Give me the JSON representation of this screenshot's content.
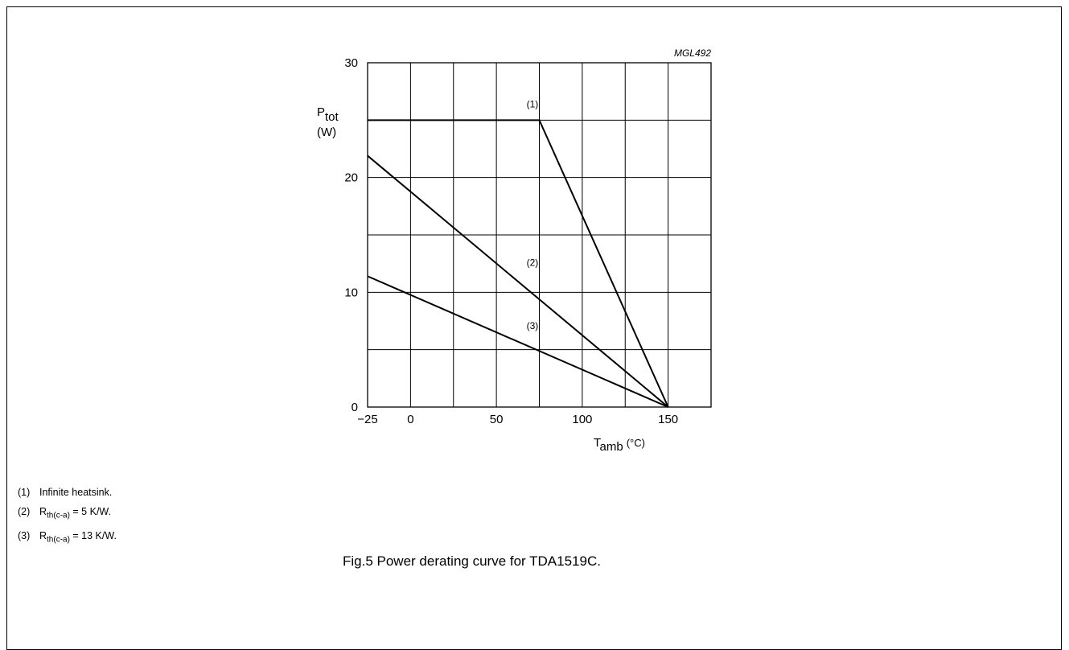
{
  "chart_data": {
    "type": "line",
    "code_label": "MGL492",
    "y_label_main": "P",
    "y_label_sub": "tot",
    "y_unit": "(W)",
    "x_label_main": "T",
    "x_label_sub": "amb",
    "x_unit": "(°C)",
    "xlim": [
      -25,
      175
    ],
    "ylim": [
      0,
      30
    ],
    "x_ticks": [
      {
        "value": -25,
        "label": "−25"
      },
      {
        "value": 0,
        "label": "0"
      },
      {
        "value": 50,
        "label": "50"
      },
      {
        "value": 100,
        "label": "100"
      },
      {
        "value": 150,
        "label": "150"
      }
    ],
    "y_ticks": [
      {
        "value": 0,
        "label": "0"
      },
      {
        "value": 10,
        "label": "10"
      },
      {
        "value": 20,
        "label": "20"
      },
      {
        "value": 30,
        "label": "30"
      }
    ],
    "grid_x": [
      0,
      25,
      50,
      75,
      100,
      125,
      150
    ],
    "grid_y": [
      5,
      10,
      15,
      20,
      25
    ],
    "grid": true,
    "series": [
      {
        "label": "(1)",
        "x": [
          -25,
          75,
          150
        ],
        "y": [
          25,
          25,
          0
        ],
        "label_at": [
          71,
          26.1
        ]
      },
      {
        "label": "(2)",
        "x": [
          -25,
          150
        ],
        "y": [
          21.9,
          0
        ],
        "label_at": [
          71,
          12.3
        ]
      },
      {
        "label": "(3)",
        "x": [
          -25,
          150
        ],
        "y": [
          11.4,
          0
        ],
        "label_at": [
          71,
          6.8
        ]
      }
    ]
  },
  "notes": [
    {
      "num": "(1)",
      "text": "Infinite heatsink.",
      "sub": "",
      "suffix": ""
    },
    {
      "num": "(2)",
      "text": "R",
      "sub": "th(c-a)",
      "suffix": " = 5 K/W."
    },
    {
      "num": "(3)",
      "text": "R",
      "sub": "th(c-a)",
      "suffix": " = 13 K/W."
    }
  ],
  "caption": "Fig.5  Power derating curve for TDA1519C."
}
